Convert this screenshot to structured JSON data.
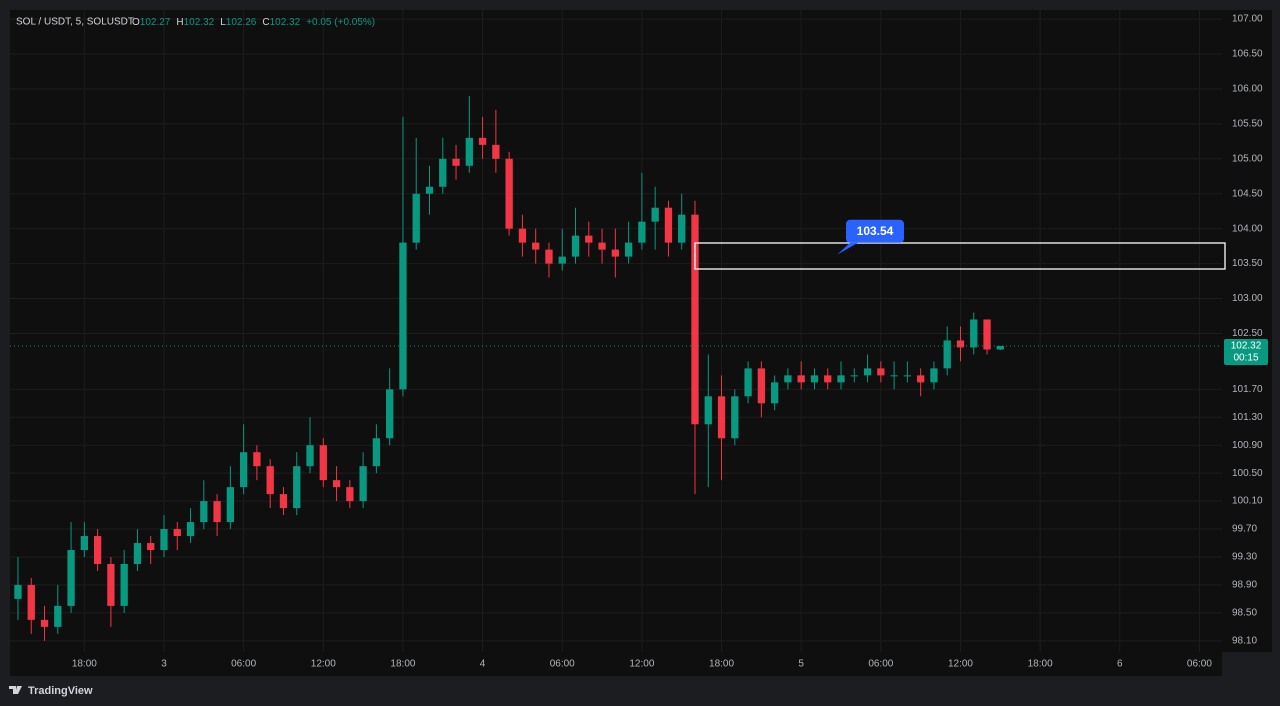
{
  "chart_data": {
    "type": "candlestick",
    "header": {
      "symbol": "SOL / USDT, 5, SOLUSDT",
      "ohlc_prefixes": [
        "O",
        "H",
        "L",
        "C"
      ],
      "change": "+0.05 (+0.05%)"
    },
    "x": [
      -11,
      -10,
      -9,
      -8,
      -7,
      -6,
      -5,
      -4,
      -3,
      -2,
      -1,
      0,
      1,
      2,
      3,
      4,
      5,
      6,
      7,
      8,
      9,
      10,
      11,
      12,
      13,
      14,
      15,
      16,
      17,
      18,
      19,
      20,
      21,
      22,
      23,
      24,
      25,
      26,
      27,
      28,
      29,
      30,
      31,
      32,
      33,
      34,
      35,
      36,
      37,
      38,
      39,
      40,
      41,
      42,
      43,
      44,
      45,
      46,
      47,
      48,
      49,
      50,
      51,
      52,
      53,
      54,
      55,
      56,
      57,
      58,
      59,
      60,
      61,
      62,
      63
    ],
    "open": [
      98.7,
      98.9,
      98.4,
      98.3,
      98.6,
      99.4,
      99.6,
      99.2,
      98.6,
      99.2,
      99.5,
      99.4,
      99.7,
      99.6,
      99.8,
      100.1,
      99.8,
      100.3,
      100.8,
      100.6,
      100.2,
      100.0,
      100.6,
      100.9,
      100.4,
      100.3,
      100.1,
      100.6,
      101.0,
      101.7,
      103.8,
      104.5,
      104.6,
      105.0,
      104.9,
      105.3,
      105.2,
      105.0,
      104.0,
      103.8,
      103.7,
      103.5,
      103.6,
      103.9,
      103.8,
      103.7,
      103.6,
      103.8,
      104.1,
      104.3,
      103.8,
      104.2,
      101.2,
      101.6,
      101.0,
      101.6,
      102.0,
      101.5,
      101.8,
      101.9,
      101.8,
      101.9,
      101.8,
      101.9,
      101.9,
      102.0,
      101.9,
      101.9,
      101.9,
      101.8,
      102.0,
      102.4,
      102.3,
      102.7,
      102.27
    ],
    "high": [
      99.3,
      99.0,
      98.6,
      98.9,
      99.8,
      99.8,
      99.7,
      99.3,
      99.4,
      99.7,
      99.6,
      99.9,
      99.8,
      100.0,
      100.4,
      100.2,
      100.6,
      101.2,
      100.9,
      100.7,
      100.3,
      100.8,
      101.3,
      101.0,
      100.6,
      100.4,
      100.8,
      101.2,
      102.0,
      105.6,
      105.3,
      104.9,
      105.3,
      105.2,
      105.9,
      105.6,
      105.7,
      105.1,
      104.2,
      104.0,
      103.8,
      104.0,
      104.3,
      104.1,
      104.0,
      104.0,
      104.1,
      104.8,
      104.6,
      104.4,
      104.5,
      104.4,
      102.2,
      101.9,
      101.7,
      102.1,
      102.1,
      101.9,
      102.0,
      102.1,
      102.0,
      102.0,
      102.1,
      102.0,
      102.2,
      102.1,
      102.1,
      102.1,
      102.0,
      102.1,
      102.6,
      102.6,
      102.8,
      102.7,
      102.32
    ],
    "low": [
      98.4,
      98.2,
      98.1,
      98.2,
      98.5,
      99.3,
      99.1,
      98.3,
      98.5,
      99.1,
      99.2,
      99.3,
      99.4,
      99.5,
      99.7,
      99.6,
      99.7,
      100.2,
      100.4,
      100.0,
      99.9,
      99.9,
      100.5,
      100.3,
      100.1,
      100.0,
      100.0,
      100.5,
      100.9,
      101.6,
      103.7,
      104.2,
      104.5,
      104.7,
      104.8,
      105.0,
      104.8,
      103.9,
      103.6,
      103.5,
      103.3,
      103.4,
      103.5,
      103.6,
      103.5,
      103.3,
      103.5,
      103.7,
      103.7,
      103.6,
      103.7,
      100.2,
      100.3,
      100.4,
      100.9,
      101.5,
      101.3,
      101.4,
      101.7,
      101.7,
      101.7,
      101.7,
      101.7,
      101.8,
      101.8,
      101.8,
      101.7,
      101.8,
      101.6,
      101.7,
      101.9,
      102.1,
      102.2,
      102.2,
      102.26
    ],
    "close": [
      98.9,
      98.4,
      98.3,
      98.6,
      99.4,
      99.6,
      99.2,
      98.6,
      99.2,
      99.5,
      99.4,
      99.7,
      99.6,
      99.8,
      100.1,
      99.8,
      100.3,
      100.8,
      100.6,
      100.2,
      100.0,
      100.6,
      100.9,
      100.4,
      100.3,
      100.1,
      100.6,
      101.0,
      101.7,
      103.8,
      104.5,
      104.6,
      105.0,
      104.9,
      105.3,
      105.2,
      105.0,
      104.0,
      103.8,
      103.7,
      103.5,
      103.6,
      103.9,
      103.8,
      103.7,
      103.6,
      103.8,
      104.1,
      104.3,
      103.8,
      104.2,
      101.2,
      101.6,
      101.0,
      101.6,
      102.0,
      101.5,
      101.8,
      101.9,
      101.8,
      101.9,
      101.8,
      101.9,
      101.9,
      102.0,
      101.9,
      101.9,
      101.9,
      101.8,
      102.0,
      102.4,
      102.3,
      102.7,
      102.27,
      102.32
    ],
    "up_color": "#089981",
    "down_color": "#f23645",
    "xlim": [
      -11.6,
      79.7
    ],
    "xticks": [
      {
        "value": -6,
        "label": "18:00"
      },
      {
        "value": 0,
        "label": "3"
      },
      {
        "value": 6,
        "label": "06:00"
      },
      {
        "value": 12,
        "label": "12:00"
      },
      {
        "value": 18,
        "label": "18:00"
      },
      {
        "value": 24,
        "label": "4"
      },
      {
        "value": 30,
        "label": "06:00"
      },
      {
        "value": 36,
        "label": "12:00"
      },
      {
        "value": 42,
        "label": "18:00"
      },
      {
        "value": 48,
        "label": "5"
      },
      {
        "value": 54,
        "label": "06:00"
      },
      {
        "value": 60,
        "label": "12:00"
      },
      {
        "value": 66,
        "label": "18:00"
      },
      {
        "value": 72,
        "label": "6"
      },
      {
        "value": 78,
        "label": "06:00"
      }
    ],
    "ylim": [
      97.94,
      107.13
    ],
    "yticks": [
      {
        "value": 107,
        "label": "107.00"
      },
      {
        "value": 106.5,
        "label": "106.50"
      },
      {
        "value": 106,
        "label": "106.00"
      },
      {
        "value": 105.5,
        "label": "105.50"
      },
      {
        "value": 105,
        "label": "105.00"
      },
      {
        "value": 104.5,
        "label": "104.50"
      },
      {
        "value": 104,
        "label": "104.00"
      },
      {
        "value": 103.5,
        "label": "103.50"
      },
      {
        "value": 103,
        "label": "103.00"
      },
      {
        "value": 102.5,
        "label": "102.50"
      },
      {
        "value": 101.7,
        "label": "101.70"
      },
      {
        "value": 101.3,
        "label": "101.30"
      },
      {
        "value": 100.9,
        "label": "100.90"
      },
      {
        "value": 100.5,
        "label": "100.50"
      },
      {
        "value": 100.1,
        "label": "100.10"
      },
      {
        "value": 99.7,
        "label": "99.70"
      },
      {
        "value": 99.3,
        "label": "99.30"
      },
      {
        "value": 98.9,
        "label": "98.90"
      },
      {
        "value": 98.5,
        "label": "98.50"
      },
      {
        "value": 98.1,
        "label": "98.10"
      }
    ],
    "grid": true,
    "annotation": {
      "value": 103.54
    },
    "countdown": "00:15",
    "brand": "TradingView"
  }
}
